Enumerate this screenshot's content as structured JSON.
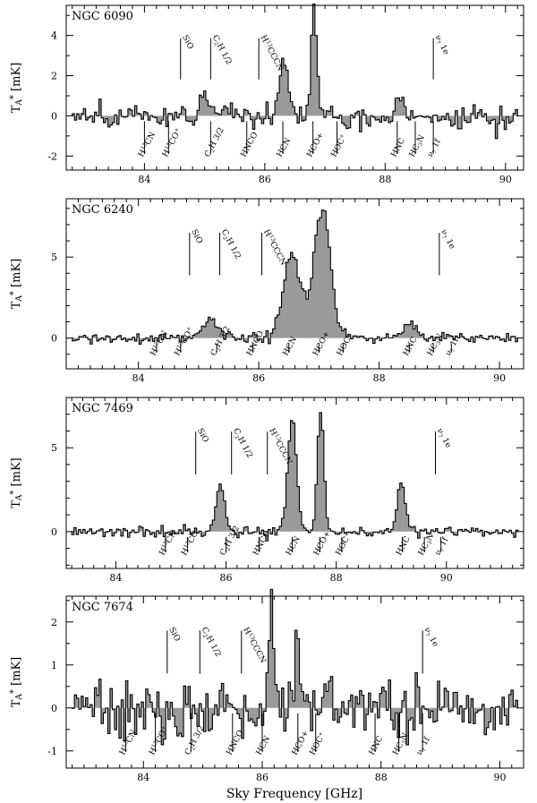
{
  "xlabel": "Sky Frequency [GHz]",
  "chart_data": [
    {
      "type": "line",
      "title": "NGC 6090",
      "ylabel": "T_A* [mK]",
      "xlim": [
        82.7,
        90.3
      ],
      "ylim": [
        -2.7,
        5.5
      ],
      "xticks": [
        84,
        86,
        88,
        90
      ],
      "yticks": [
        -2,
        0,
        2,
        4
      ],
      "upper_labels": [
        {
          "label": "SiO",
          "x": 84.6
        },
        {
          "label": "C2H 1/2",
          "x": 85.1
        },
        {
          "label": "H13CCCN",
          "x": 85.9
        },
        {
          "label": "ν7 1e",
          "x": 88.8
        }
      ],
      "lower_labels": [
        {
          "label": "H13CN",
          "x": 84.0
        },
        {
          "label": "H13CO+",
          "x": 84.4
        },
        {
          "label": "C2H 3/2",
          "x": 85.1
        },
        {
          "label": "HNCO",
          "x": 85.7
        },
        {
          "label": "HCN",
          "x": 86.3
        },
        {
          "label": "HCO+",
          "x": 86.8
        },
        {
          "label": "HOC+",
          "x": 87.2
        },
        {
          "label": "HNC",
          "x": 88.2
        },
        {
          "label": "HC3N",
          "x": 88.5
        },
        {
          "label": "ν7 1f",
          "x": 88.8
        }
      ],
      "lines": [
        {
          "name": "HCN",
          "center": 86.32,
          "peak": 2.8,
          "width": 0.07
        },
        {
          "name": "HCO+",
          "center": 86.82,
          "peak": 5.0,
          "width": 0.05
        },
        {
          "name": "C2H",
          "center": 85.0,
          "peak": 1.4,
          "width": 0.06
        },
        {
          "name": "HNC",
          "center": 88.22,
          "peak": 0.8,
          "width": 0.06
        }
      ],
      "noise": 0.7
    },
    {
      "type": "line",
      "title": "NGC 6240",
      "ylabel": "T_A* [mK]",
      "xlim": [
        82.8,
        90.4
      ],
      "ylim": [
        -1.9,
        8.6
      ],
      "xticks": [
        84,
        86,
        88,
        90
      ],
      "yticks": [
        0,
        5
      ],
      "upper_labels": [
        {
          "label": "SiO",
          "x": 84.85
        },
        {
          "label": "C2H 1/2",
          "x": 85.35
        },
        {
          "label": "H13CCCN",
          "x": 86.05
        },
        {
          "label": "ν7 1e",
          "x": 89.0
        }
      ],
      "lower_labels": [
        {
          "label": "H13CN",
          "x": 84.3
        },
        {
          "label": "H13CO+",
          "x": 84.7
        },
        {
          "label": "C2H 3/2",
          "x": 85.3
        },
        {
          "label": "HNCO",
          "x": 85.9
        },
        {
          "label": "HCN",
          "x": 86.5
        },
        {
          "label": "HCO+",
          "x": 87.0
        },
        {
          "label": "HOC+",
          "x": 87.4
        },
        {
          "label": "HNC",
          "x": 88.5
        },
        {
          "label": "HC3N",
          "x": 88.9
        },
        {
          "label": "ν7 1f",
          "x": 89.2
        }
      ],
      "lines": [
        {
          "name": "HCN",
          "center": 86.55,
          "peak": 5.2,
          "width": 0.14
        },
        {
          "name": "HCO+",
          "center": 87.05,
          "peak": 8.0,
          "width": 0.14
        },
        {
          "name": "C2H",
          "center": 85.2,
          "peak": 1.3,
          "width": 0.12
        },
        {
          "name": "HNC",
          "center": 88.52,
          "peak": 1.0,
          "width": 0.1
        }
      ],
      "noise": 0.35
    },
    {
      "type": "line",
      "title": "NGC 7469",
      "ylabel": "T_A* [mK]",
      "xlim": [
        83.1,
        91.4
      ],
      "ylim": [
        -2.2,
        8.0
      ],
      "xticks": [
        84,
        86,
        88,
        90
      ],
      "yticks": [
        0,
        5
      ],
      "upper_labels": [
        {
          "label": "SiO",
          "x": 85.45
        },
        {
          "label": "C2H 1/2",
          "x": 86.1
        },
        {
          "label": "H13CCCN",
          "x": 86.75
        },
        {
          "label": "ν7 1e",
          "x": 89.8
        }
      ],
      "lower_labels": [
        {
          "label": "H13CN",
          "x": 84.9
        },
        {
          "label": "H13CO+",
          "x": 85.3
        },
        {
          "label": "C2H 3/2",
          "x": 86.0
        },
        {
          "label": "HNCO",
          "x": 86.6
        },
        {
          "label": "HCN",
          "x": 87.2
        },
        {
          "label": "HCO+",
          "x": 87.7
        },
        {
          "label": "HOC+",
          "x": 88.1
        },
        {
          "label": "HNC",
          "x": 89.2
        },
        {
          "label": "HC3N",
          "x": 89.6
        },
        {
          "label": "ν7 1f",
          "x": 89.9
        }
      ],
      "lines": [
        {
          "name": "HCN",
          "center": 87.2,
          "peak": 6.7,
          "width": 0.08
        },
        {
          "name": "HCO+",
          "center": 87.72,
          "peak": 7.2,
          "width": 0.06
        },
        {
          "name": "C2H",
          "center": 85.9,
          "peak": 2.8,
          "width": 0.08
        },
        {
          "name": "HNC",
          "center": 89.18,
          "peak": 2.9,
          "width": 0.07
        }
      ],
      "noise": 0.35
    },
    {
      "type": "line",
      "title": "NGC 7674",
      "ylabel": "T_A* [mK]",
      "xlim": [
        82.7,
        90.4
      ],
      "ylim": [
        -1.4,
        2.6
      ],
      "xticks": [
        84,
        86,
        88,
        90
      ],
      "yticks": [
        -1,
        0,
        1,
        2
      ],
      "upper_labels": [
        {
          "label": "SiO",
          "x": 84.4
        },
        {
          "label": "C2H 1/2",
          "x": 84.95
        },
        {
          "label": "H13CCCN",
          "x": 85.65
        },
        {
          "label": "ν7 1e",
          "x": 88.7
        }
      ],
      "lower_labels": [
        {
          "label": "H13CN",
          "x": 83.7
        },
        {
          "label": "H13CO+",
          "x": 84.2
        },
        {
          "label": "C2H 3/2",
          "x": 84.8
        },
        {
          "label": "HNCO",
          "x": 85.5
        },
        {
          "label": "HCN",
          "x": 86.0
        },
        {
          "label": "HCO+",
          "x": 86.6
        },
        {
          "label": "HOC+",
          "x": 86.9
        },
        {
          "label": "HNC",
          "x": 87.9
        },
        {
          "label": "HC3N",
          "x": 88.3
        },
        {
          "label": "ν7 1f",
          "x": 88.7
        }
      ],
      "lines": [
        {
          "name": "HCN",
          "center": 86.15,
          "peak": 2.5,
          "width": 0.04
        },
        {
          "name": "HCO+",
          "center": 86.6,
          "peak": 1.5,
          "width": 0.05
        }
      ],
      "noise": 0.75
    }
  ]
}
